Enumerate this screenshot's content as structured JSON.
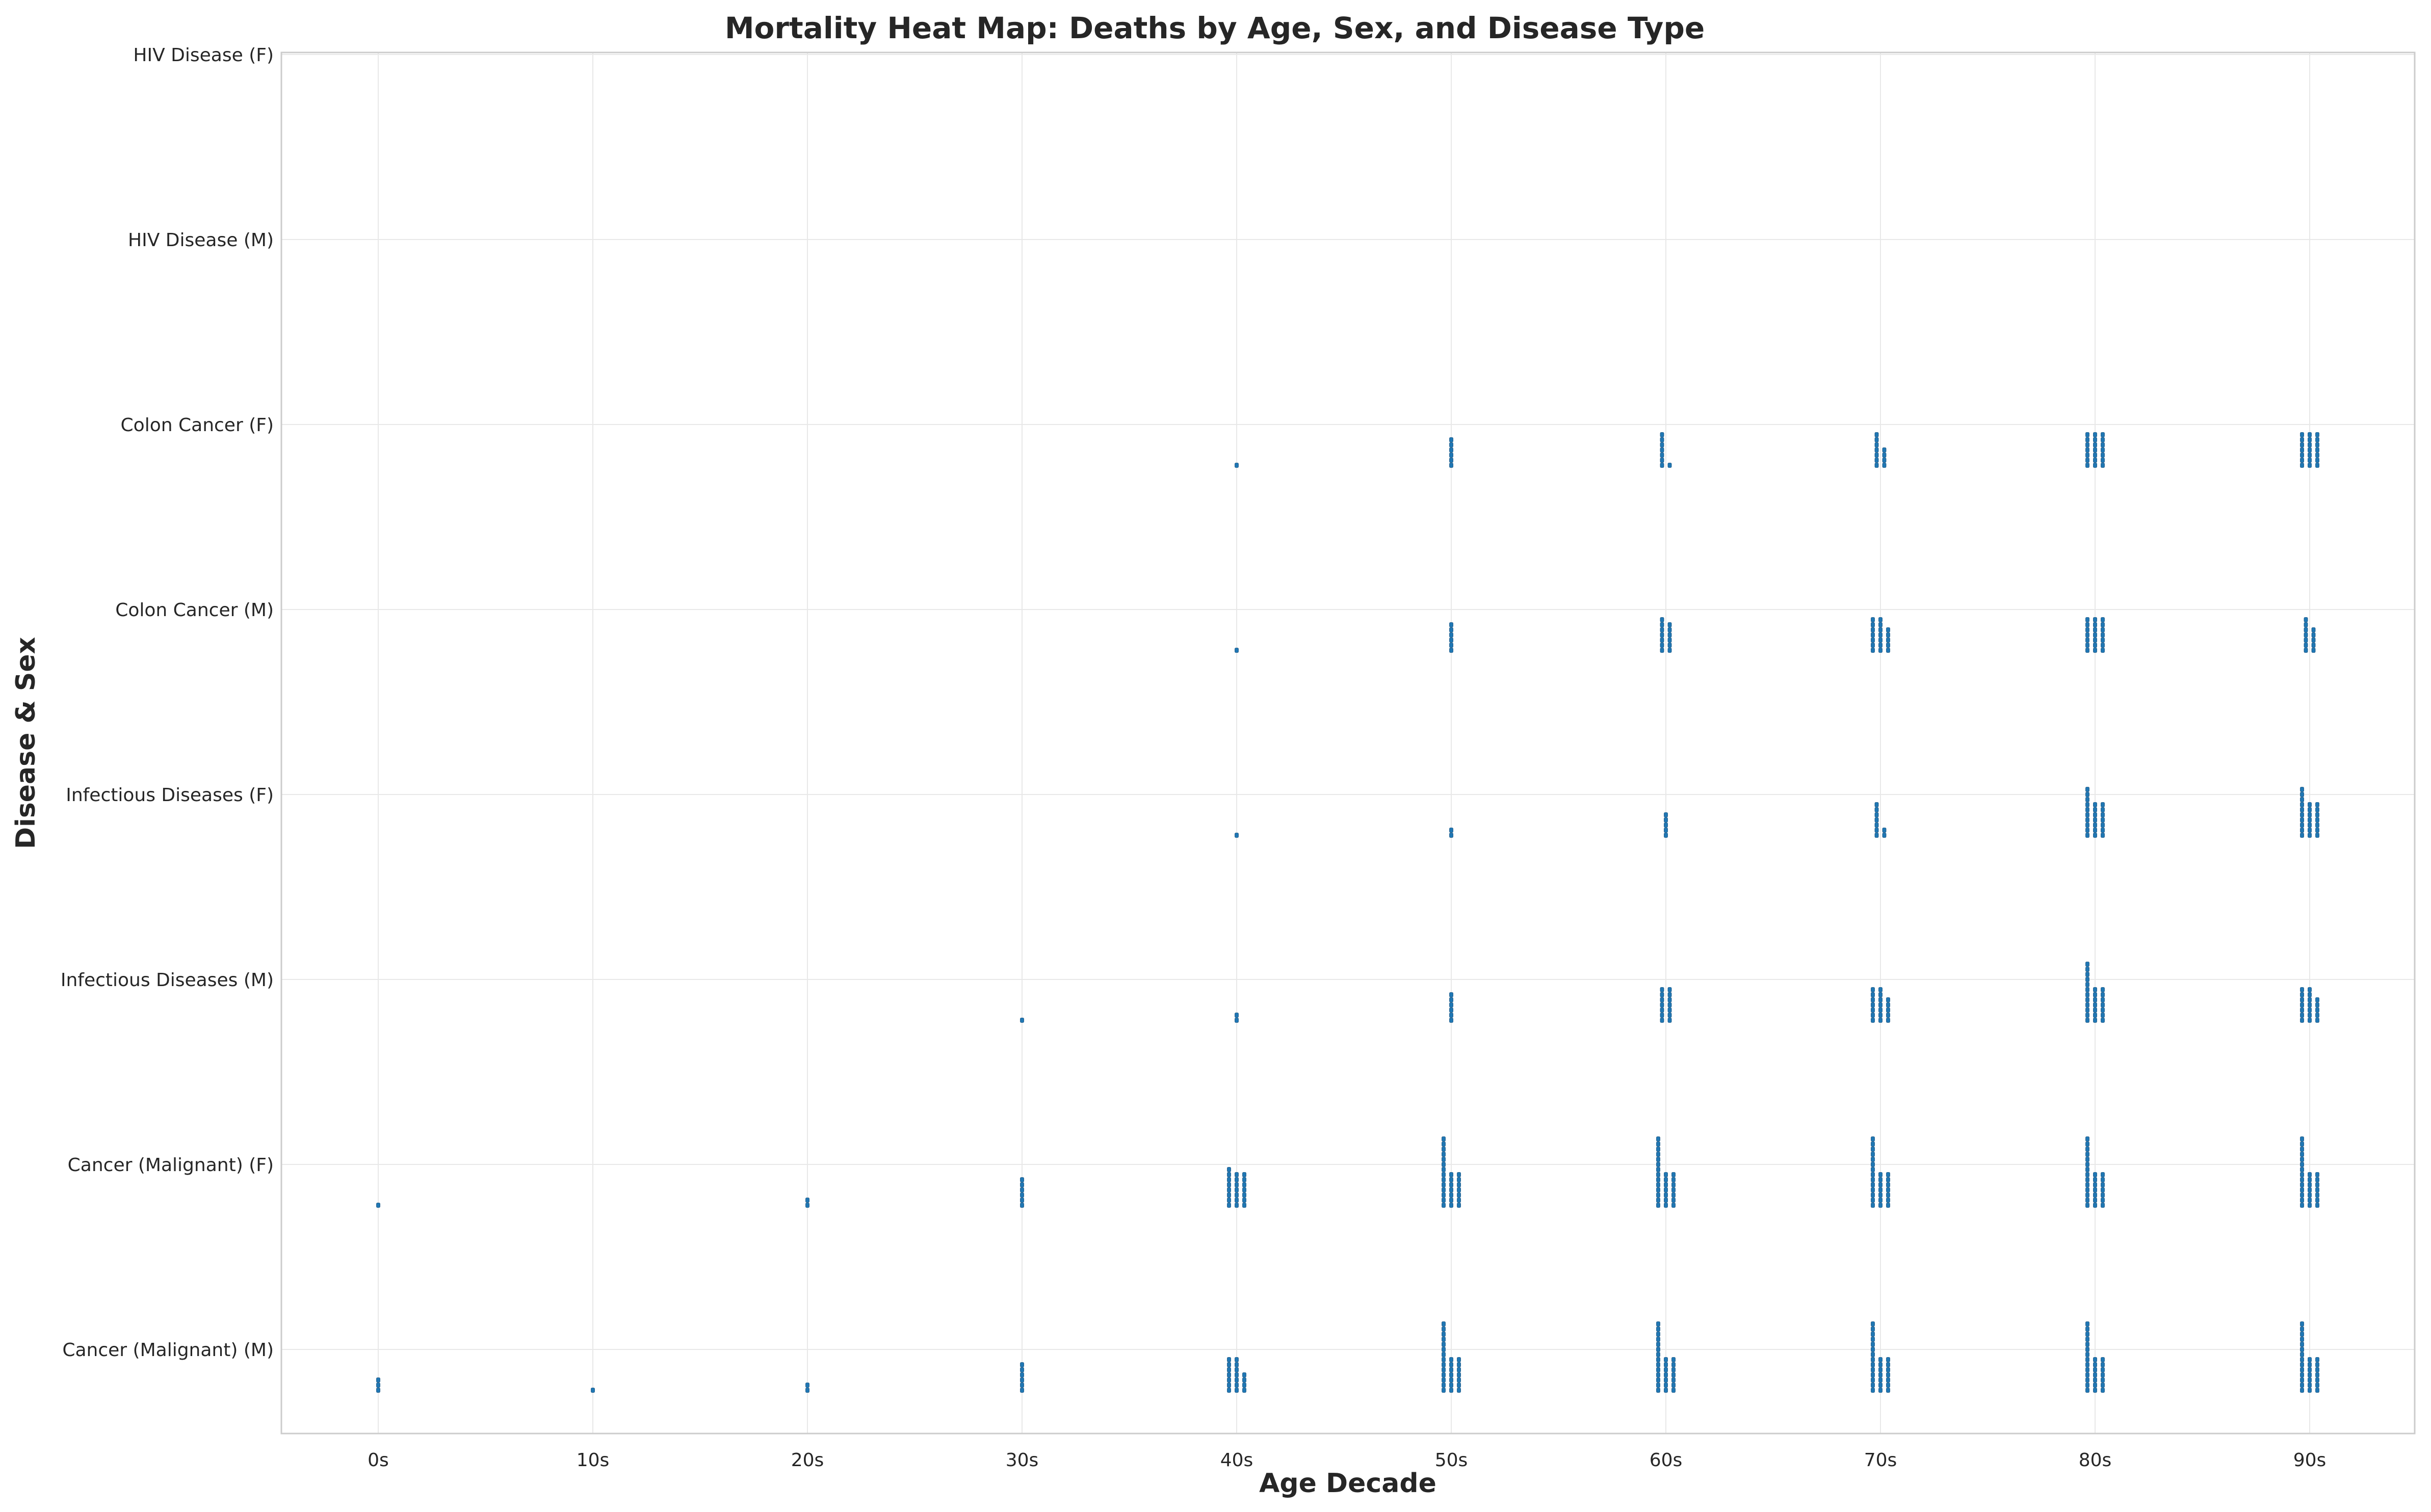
{
  "chart_data": {
    "type": "scatter",
    "title": "Mortality Heat Map: Deaths by Age, Sex, and Disease Type",
    "xlabel": "Age Decade",
    "ylabel": "Disease & Sex",
    "x_categories": [
      "0s",
      "10s",
      "20s",
      "30s",
      "40s",
      "50s",
      "60s",
      "70s",
      "80s",
      "90s"
    ],
    "y_categories": [
      "Cancer (Malignant) (M)",
      "Cancer (Malignant) (F)",
      "Infectious Diseases (M)",
      "Infectious Diseases (F)",
      "Colon Cancer (M)",
      "Colon Cancer (F)",
      "HIV Disease (M)",
      "HIV Disease (F)"
    ],
    "grid": true,
    "legend": "none",
    "marker_color": "#1f77b4",
    "rows": [
      {
        "disease": "Cancer (Malignant) (M)",
        "counts_by_decade": [
          3,
          1,
          2,
          6,
          18,
          28,
          28,
          28,
          28,
          28
        ]
      },
      {
        "disease": "Cancer (Malignant) (F)",
        "counts_by_decade": [
          1,
          0,
          2,
          6,
          22,
          28,
          28,
          28,
          28,
          28
        ]
      },
      {
        "disease": "Infectious Diseases (M)",
        "counts_by_decade": [
          0,
          0,
          0,
          1,
          2,
          6,
          14,
          19,
          26,
          19
        ]
      },
      {
        "disease": "Infectious Diseases (F)",
        "counts_by_decade": [
          0,
          0,
          0,
          0,
          1,
          2,
          5,
          9,
          24,
          24
        ]
      },
      {
        "disease": "Colon Cancer (M)",
        "counts_by_decade": [
          0,
          0,
          0,
          0,
          1,
          6,
          13,
          19,
          21,
          12
        ]
      },
      {
        "disease": "Colon Cancer (F)",
        "counts_by_decade": [
          0,
          0,
          0,
          0,
          1,
          6,
          8,
          11,
          21,
          21
        ]
      },
      {
        "disease": "HIV Disease (M)",
        "counts_by_decade": [
          0,
          0,
          0,
          0,
          0,
          0,
          0,
          0,
          0,
          0
        ]
      },
      {
        "disease": "HIV Disease (F)",
        "counts_by_decade": [
          0,
          0,
          0,
          0,
          0,
          0,
          0,
          0,
          0,
          0
        ]
      }
    ]
  }
}
